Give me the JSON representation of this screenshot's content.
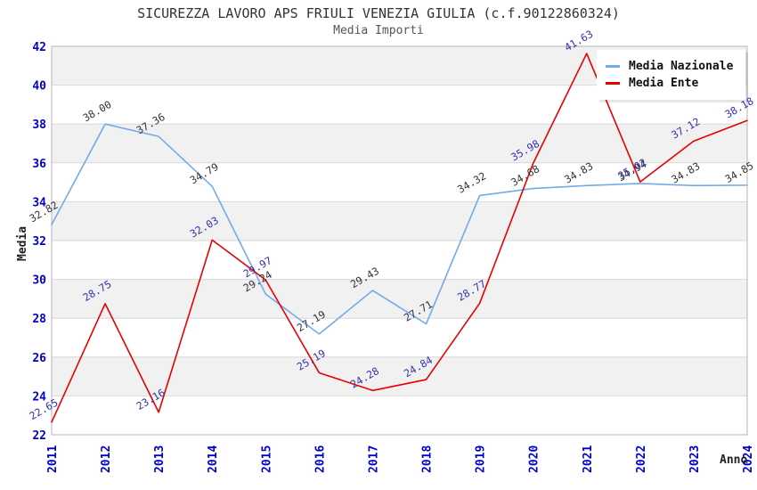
{
  "title": "SICUREZZA LAVORO APS FRIULI VENEZIA GIULIA (c.f.90122860324)",
  "subtitle": "Media Importi",
  "legend": {
    "items": [
      {
        "label": "Media Nazionale",
        "color": "#74aae8"
      },
      {
        "label": "Media Ente",
        "color": "#e80000"
      }
    ]
  },
  "axes": {
    "y_label": "Media",
    "x_label": "Anno",
    "y_ticks": [
      "42",
      "40",
      "38",
      "36",
      "34",
      "32",
      "30",
      "28",
      "26",
      "24",
      "22"
    ],
    "tick_color": "#0000cc",
    "grid_color": "#d8d8d8",
    "border_color": "#b5b5b5"
  },
  "chart_data": {
    "type": "line",
    "title": "Media Importi",
    "xlabel": "Anno",
    "ylabel": "Media",
    "ylim": [
      22,
      42
    ],
    "grid": true,
    "band_color": "#f1f1f1",
    "legend_position": "top-right",
    "x": [
      2011,
      2012,
      2013,
      2014,
      2015,
      2016,
      2017,
      2018,
      2019,
      2020,
      2021,
      2022,
      2023,
      2024
    ],
    "series": [
      {
        "name": "Media Nazionale",
        "color": "#74aae8",
        "label_color": "#333333",
        "values": [
          32.82,
          38.0,
          37.36,
          34.79,
          29.24,
          27.19,
          29.43,
          27.71,
          34.32,
          34.68,
          34.83,
          34.94,
          34.83,
          34.85
        ]
      },
      {
        "name": "Media Ente",
        "color": "#e80000",
        "label_color": "#3333aa",
        "values": [
          22.65,
          28.75,
          23.16,
          32.03,
          29.97,
          25.19,
          24.28,
          24.84,
          28.77,
          35.98,
          41.63,
          35.02,
          37.12,
          38.18
        ]
      }
    ]
  }
}
